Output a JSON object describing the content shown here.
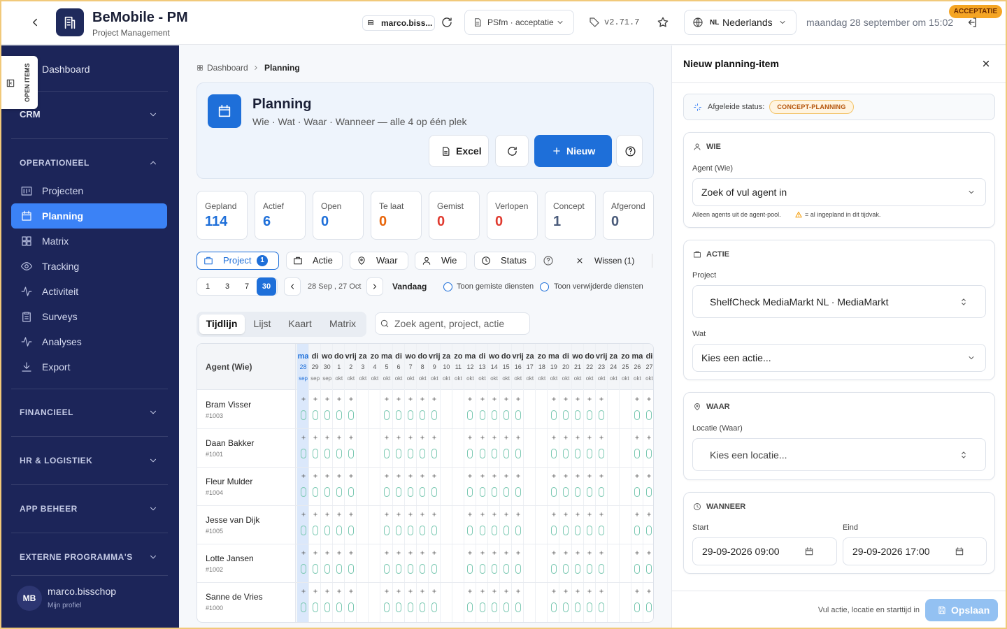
{
  "header": {
    "app_title": "BeMobile - PM",
    "app_subtitle": "Project Management",
    "user_chip": "marco.biss...",
    "environment": "PSfm · acceptatie",
    "version": "v2.71.7",
    "language_code": "NL",
    "language": "Nederlands",
    "datetime": "maandag 28 september om 15:02",
    "badge": "ACCEPTATIE"
  },
  "sidebar": {
    "open_items": "OPEN ITEMS",
    "dashboard": "Dashboard",
    "sections": [
      {
        "title": "CRM",
        "items": []
      },
      {
        "title": "OPERATIONEEL",
        "items": [
          "Projecten",
          "Planning",
          "Matrix",
          "Tracking",
          "Activiteit",
          "Surveys",
          "Analyses",
          "Export"
        ]
      },
      {
        "title": "FINANCIEEL",
        "items": []
      },
      {
        "title": "HR & LOGISTIEK",
        "items": []
      },
      {
        "title": "APP BEHEER",
        "items": []
      },
      {
        "title": "EXTERNE PROGRAMMA'S",
        "items": []
      }
    ],
    "user": {
      "initials": "MB",
      "name": "marco.bisschop",
      "link": "Mijn profiel"
    }
  },
  "breadcrumb": [
    "Dashboard",
    "Planning"
  ],
  "page_header": {
    "title": "Planning",
    "subtitle": "Wie · Wat · Waar · Wanneer — alle 4 op één plek",
    "excel": "Excel",
    "new": "Nieuw"
  },
  "stats": [
    {
      "label": "Gepland",
      "value": 114,
      "color": "#1e6fd9"
    },
    {
      "label": "Actief",
      "value": 6,
      "color": "#1e6fd9"
    },
    {
      "label": "Open",
      "value": 0,
      "color": "#1e6fd9"
    },
    {
      "label": "Te laat",
      "value": 0,
      "color": "#e8650a"
    },
    {
      "label": "Gemist",
      "value": 0,
      "color": "#e03a2f"
    },
    {
      "label": "Verlopen",
      "value": 0,
      "color": "#e03a2f"
    },
    {
      "label": "Concept",
      "value": 1,
      "color": "#4a5b7a"
    },
    {
      "label": "Afgerond",
      "value": 0,
      "color": "#4a5b7a"
    }
  ],
  "filters": {
    "items": [
      {
        "label": "Project",
        "count": 1
      },
      {
        "label": "Actie"
      },
      {
        "label": "Waar"
      },
      {
        "label": "Wie"
      },
      {
        "label": "Status"
      }
    ],
    "clear": "Wissen (1)"
  },
  "range": {
    "options": [
      1,
      3,
      7,
      30
    ],
    "period": "28 Sep , 27 Oct",
    "today": "Vandaag",
    "toggles": [
      "Toon gemiste diensten",
      "Toon verwijderde diensten"
    ]
  },
  "tabs": [
    "Tijdlijn",
    "Lijst",
    "Kaart",
    "Matrix"
  ],
  "search_placeholder": "Zoek agent, project, actie",
  "timeline": {
    "agent_header": "Agent (Wie)",
    "days": [
      {
        "day": "ma",
        "date": 28,
        "month": "sep"
      },
      {
        "day": "di",
        "date": 29,
        "month": "sep"
      },
      {
        "day": "wo",
        "date": 30,
        "month": "sep"
      },
      {
        "day": "do",
        "date": 1,
        "month": "okt"
      },
      {
        "day": "vrij",
        "date": 2,
        "month": "okt"
      },
      {
        "day": "za",
        "date": 3,
        "month": "okt"
      },
      {
        "day": "zo",
        "date": 4,
        "month": "okt"
      },
      {
        "day": "ma",
        "date": 5,
        "month": "okt"
      },
      {
        "day": "di",
        "date": 6,
        "month": "okt"
      },
      {
        "day": "wo",
        "date": 7,
        "month": "okt"
      },
      {
        "day": "do",
        "date": 8,
        "month": "okt"
      },
      {
        "day": "vrij",
        "date": 9,
        "month": "okt"
      },
      {
        "day": "za",
        "date": 10,
        "month": "okt"
      },
      {
        "day": "zo",
        "date": 11,
        "month": "okt"
      },
      {
        "day": "ma",
        "date": 12,
        "month": "okt"
      },
      {
        "day": "di",
        "date": 13,
        "month": "okt"
      },
      {
        "day": "wo",
        "date": 14,
        "month": "okt"
      },
      {
        "day": "do",
        "date": 15,
        "month": "okt"
      },
      {
        "day": "vrij",
        "date": 16,
        "month": "okt"
      },
      {
        "day": "za",
        "date": 17,
        "month": "okt"
      },
      {
        "day": "zo",
        "date": 18,
        "month": "okt"
      },
      {
        "day": "ma",
        "date": 19,
        "month": "okt"
      },
      {
        "day": "di",
        "date": 20,
        "month": "okt"
      },
      {
        "day": "wo",
        "date": 21,
        "month": "okt"
      },
      {
        "day": "do",
        "date": 22,
        "month": "okt"
      },
      {
        "day": "vrij",
        "date": 23,
        "month": "okt"
      },
      {
        "day": "za",
        "date": 24,
        "month": "okt"
      },
      {
        "day": "zo",
        "date": 25,
        "month": "okt"
      },
      {
        "day": "ma",
        "date": 26,
        "month": "okt"
      },
      {
        "day": "di",
        "date": 27,
        "month": "okt"
      }
    ],
    "agents": [
      {
        "name": "Bram Visser",
        "id": "#1003"
      },
      {
        "name": "Daan Bakker",
        "id": "#1001"
      },
      {
        "name": "Fleur Mulder",
        "id": "#1004"
      },
      {
        "name": "Jesse van Dijk",
        "id": "#1005"
      },
      {
        "name": "Lotte Jansen",
        "id": "#1002"
      },
      {
        "name": "Sanne de Vries",
        "id": "#1000"
      }
    ]
  },
  "panel": {
    "title": "Nieuw planning-item",
    "status_label": "Afgeleide status:",
    "status": "CONCEPT-PLANNING",
    "wie": {
      "title": "WIE",
      "agent_label": "Agent (Wie)",
      "agent_placeholder": "Zoek of vul agent in",
      "hint": "Alleen agents uit de agent-pool.",
      "hint_legend": "= al ingepland in dit tijdvak."
    },
    "actie": {
      "title": "ACTIE",
      "project_label": "Project",
      "project": "ShelfCheck MediaMarkt NL · MediaMarkt",
      "wat_label": "Wat",
      "wat_placeholder": "Kies een actie..."
    },
    "waar": {
      "title": "WAAR",
      "location_label": "Locatie (Waar)",
      "location_placeholder": "Kies een locatie..."
    },
    "wanneer": {
      "title": "WANNEER",
      "start_label": "Start",
      "start": "29-09-2026 09:00",
      "end_label": "Eind",
      "end": "29-09-2026 17:00"
    },
    "footer_hint": "Vul actie, locatie en starttijd in",
    "save": "Opslaan"
  }
}
